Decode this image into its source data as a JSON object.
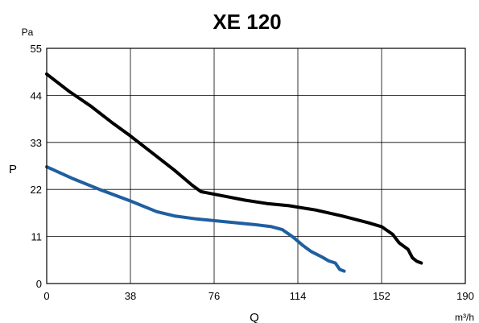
{
  "chart_data": {
    "type": "line",
    "title": "XE 120",
    "xlabel": "Q",
    "ylabel": "P",
    "x_unit": "m³/h",
    "y_unit": "Pa",
    "xlim": [
      0,
      190
    ],
    "ylim": [
      0,
      55
    ],
    "x_ticks": [
      "0",
      "38",
      "76",
      "114",
      "152",
      "190"
    ],
    "y_ticks": [
      "0",
      "11",
      "22",
      "33",
      "44",
      "55"
    ],
    "grid": true,
    "series": [
      {
        "color": "#000000",
        "points": [
          [
            0,
            49
          ],
          [
            10,
            45
          ],
          [
            20,
            41.5
          ],
          [
            30,
            37.5
          ],
          [
            38,
            34.5
          ],
          [
            48,
            30.5
          ],
          [
            58,
            26.5
          ],
          [
            66,
            23
          ],
          [
            70,
            21.5
          ],
          [
            80,
            20.5
          ],
          [
            90,
            19.5
          ],
          [
            100,
            18.7
          ],
          [
            110,
            18.2
          ],
          [
            122,
            17.2
          ],
          [
            134,
            15.8
          ],
          [
            146,
            14.2
          ],
          [
            152,
            13.3
          ],
          [
            157,
            11.5
          ],
          [
            160,
            9.5
          ],
          [
            164,
            8
          ],
          [
            166,
            6
          ],
          [
            168,
            5.2
          ],
          [
            170,
            4.8
          ]
        ]
      },
      {
        "color": "#1f5fa0",
        "points": [
          [
            0,
            27.3
          ],
          [
            12,
            24.5
          ],
          [
            24,
            22
          ],
          [
            38,
            19.3
          ],
          [
            50,
            16.8
          ],
          [
            58,
            15.8
          ],
          [
            68,
            15.1
          ],
          [
            80,
            14.5
          ],
          [
            94,
            13.8
          ],
          [
            102,
            13.3
          ],
          [
            107,
            12.6
          ],
          [
            112,
            10.8
          ],
          [
            116,
            9
          ],
          [
            120,
            7.5
          ],
          [
            125,
            6.2
          ],
          [
            128,
            5.3
          ],
          [
            131,
            4.8
          ],
          [
            133,
            3.3
          ],
          [
            135,
            2.9
          ]
        ]
      }
    ]
  }
}
